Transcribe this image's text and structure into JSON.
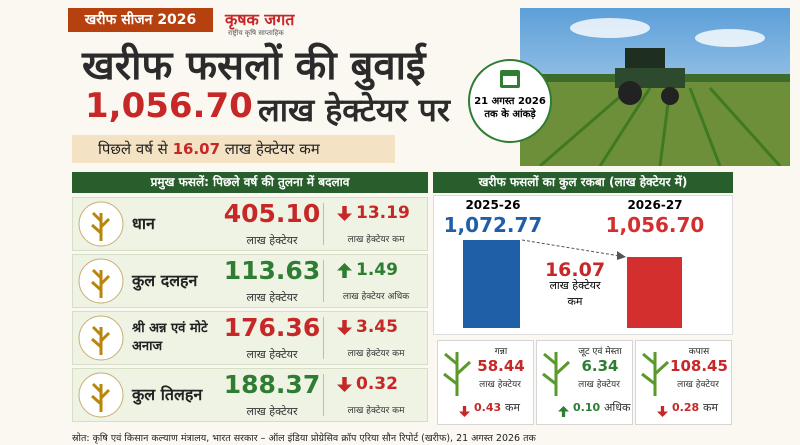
{
  "header": {
    "tag": "खरीफ सीजन 2026",
    "logo": "कृषक जगत",
    "tagline": "राष्ट्रीय कृषि साप्ताहिक",
    "title": "खरीफ फसलों की बुवाई",
    "total": "1,056.70",
    "total_unit": "लाख हेक्टेयर पर",
    "subline_prefix": "पिछले वर्ष से",
    "subline_value": "16.07",
    "subline_suffix": "लाख हेक्टेयर कम"
  },
  "badge": {
    "date": "21 अगस्त 2026",
    "note": "तक के आंकड़े"
  },
  "crops_panel": {
    "title": "प्रमुख फसलें: पिछले वर्ष की तुलना में बदलाव",
    "rows": [
      {
        "name": "धान",
        "value": "405.10",
        "unit": "लाख हेक्टेयर",
        "color": "#c62828",
        "direction": "down",
        "change": "13.19",
        "change_unit": "लाख हेक्टेयर कम"
      },
      {
        "name": "कुल दलहन",
        "value": "113.63",
        "unit": "लाख हेक्टेयर",
        "color": "#2e7d32",
        "direction": "up",
        "change": "1.49",
        "change_unit": "लाख हेक्टेयर अधिक"
      },
      {
        "name": "श्री अन्न एवं मोटे अनाज",
        "value": "176.36",
        "unit": "लाख हेक्टेयर",
        "color": "#c62828",
        "direction": "down",
        "change": "3.45",
        "change_unit": "लाख हेक्टेयर कम"
      },
      {
        "name": "कुल तिलहन",
        "value": "188.37",
        "unit": "लाख हेक्टेयर",
        "color": "#2e7d32",
        "direction": "down",
        "change": "0.32",
        "change_unit": "लाख हेक्टेयर कम"
      }
    ]
  },
  "total_panel": {
    "title": "खरीफ फसलों का कुल रकबा (लाख हेक्टेयर में)",
    "years": [
      {
        "year": "2025-26",
        "value": "1,072.77",
        "color": "#1f5fa8"
      },
      {
        "year": "2026-27",
        "value": "1,056.70",
        "color": "#d32f2f"
      }
    ],
    "difference": "16.07",
    "difference_unit": "लाख हेक्टेयर",
    "difference_note": "कम"
  },
  "other_crops": [
    {
      "name": "गन्ना",
      "value": "58.44",
      "unit": "लाख हेक्टेयर",
      "direction": "down",
      "change": "0.43",
      "change_note": "कम"
    },
    {
      "name": "जूट एवं मेस्ता",
      "value": "6.34",
      "unit": "लाख हेक्टेयर",
      "direction": "up",
      "change": "0.10",
      "change_note": "अधिक"
    },
    {
      "name": "कपास",
      "value": "108.45",
      "unit": "लाख हेक्टेयर",
      "direction": "down",
      "change": "0.28",
      "change_note": "कम"
    }
  ],
  "footer": "स्रोत: कृषि एवं किसान कल्याण मंत्रालय, भारत सरकार – ऑल इंडिया प्रोग्रेसिव क्रॉप एरिया सौन रिपोर्ट (खरीफ), 21 अगस्त 2026 तक"
}
